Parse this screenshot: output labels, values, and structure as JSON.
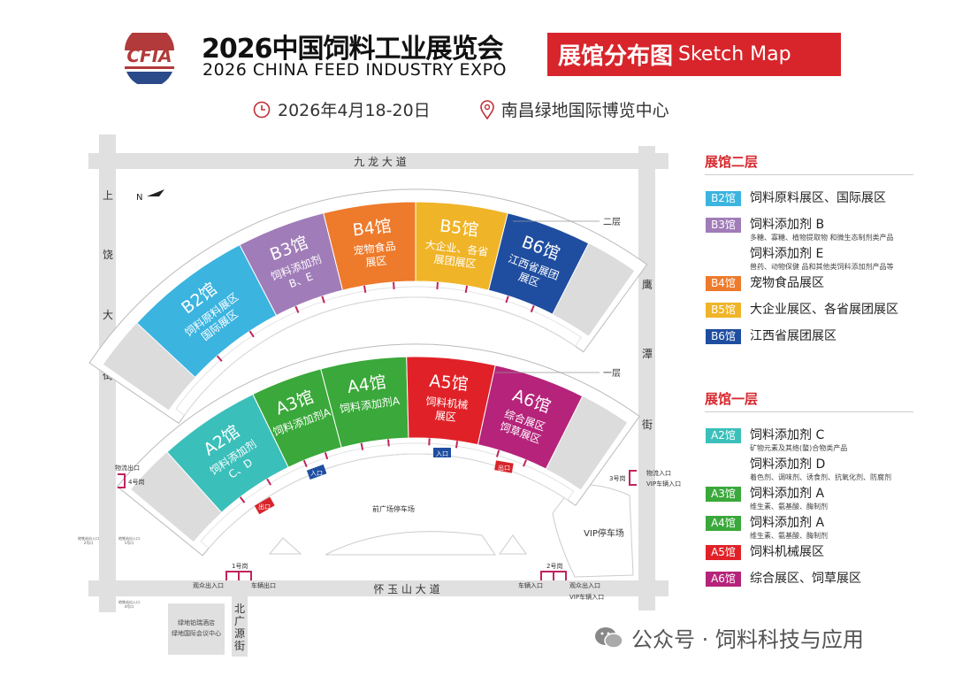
{
  "header": {
    "logo_text": "CFIA",
    "title_cn": "2026中国饲料工业展览会",
    "title_en": "2026 CHINA FEED INDUSTRY EXPO",
    "banner_cn": "展馆分布图",
    "banner_en": "Sketch Map",
    "date": "2026年4月18-20日",
    "venue": "南昌绿地国际博览中心"
  },
  "roads": {
    "north": "九 龙 大 道",
    "south": "怀 玉 山 大 道",
    "west": [
      "上",
      "饶",
      "大",
      "街"
    ],
    "east": [
      "鹰",
      "潭",
      "街"
    ],
    "bottom_street": [
      "北",
      "广",
      "源",
      "街"
    ]
  },
  "map_labels": {
    "north": "N",
    "floor2": "二层",
    "floor1": "一层",
    "plaza": "前广场停车场",
    "vip_parking": "VIP停车场",
    "hotel_1": "绿地铂瑞酒店",
    "hotel_2": "绿地国际会议中心",
    "entrance": "入口",
    "exit": "出口",
    "gate1": "1号岗",
    "gate1_left": "观众出入口",
    "gate1_right": "车辆出口",
    "gate2": "2号岗",
    "gate2_left": "车辆入口",
    "gate2_right": "观众出入口",
    "gate2_vip": "VIP车辆入口",
    "gate3": "3号岗",
    "gate3_a": "物流入口",
    "gate3_b": "VIP车辆入口",
    "gate4": "4号岗",
    "gate4_a": "物流出口",
    "metro_1": "地铁站出入口",
    "metro_1b": "2号口",
    "metro_2": "地铁站出入口",
    "metro_2b": "1号口",
    "metro_3": "地铁站出入口",
    "metro_3b": "4号口"
  },
  "halls_upper": [
    {
      "id": "B2",
      "lines": [
        "B2馆",
        "饲料原料展区",
        "国际展区"
      ],
      "color": "#3bb4e0"
    },
    {
      "id": "B3",
      "lines": [
        "B3馆",
        "饲料添加剂",
        "B、E"
      ],
      "color": "#a07cb8"
    },
    {
      "id": "B4",
      "lines": [
        "B4馆",
        "宠物食品",
        "展区"
      ],
      "color": "#ee7a2b"
    },
    {
      "id": "B5",
      "lines": [
        "B5馆",
        "大企业、各省",
        "展团展区"
      ],
      "color": "#f0b428"
    },
    {
      "id": "B6",
      "lines": [
        "B6馆",
        "江西省展团",
        "展区"
      ],
      "color": "#1f4ea0"
    }
  ],
  "halls_lower": [
    {
      "id": "A2",
      "lines": [
        "A2馆",
        "饲料添加剂",
        "C、D"
      ],
      "color": "#3bbfba"
    },
    {
      "id": "A3",
      "lines": [
        "A3馆",
        "饲料添加剂A"
      ],
      "color": "#3aa83a"
    },
    {
      "id": "A4",
      "lines": [
        "A4馆",
        "饲料添加剂A"
      ],
      "color": "#3aa83a"
    },
    {
      "id": "A5",
      "lines": [
        "A5馆",
        "饲料机械",
        "展区"
      ],
      "color": "#e02228"
    },
    {
      "id": "A6",
      "lines": [
        "A6馆",
        "综合展区",
        "饲草展区"
      ],
      "color": "#b5237a"
    }
  ],
  "legend": {
    "floor2_title": "展馆二层",
    "floor2": [
      {
        "badge": "B2馆",
        "color": "#3bb4e0",
        "items": [
          {
            "main": "饲料原料展区、国际展区"
          }
        ]
      },
      {
        "badge": "B3馆",
        "color": "#a07cb8",
        "items": [
          {
            "main": "饲料添加剂 B",
            "sub": "多糖、寡糖、植物提取物 和微生态制剂类产品"
          },
          {
            "main": "饲料添加剂 E",
            "sub": "兽药、动物保健 品和其他类饲料添加剂产品等"
          }
        ]
      },
      {
        "badge": "B4馆",
        "color": "#ee7a2b",
        "items": [
          {
            "main": "宠物食品展区"
          }
        ]
      },
      {
        "badge": "B5馆",
        "color": "#f0b428",
        "items": [
          {
            "main": "大企业展区、各省展团展区"
          }
        ]
      },
      {
        "badge": "B6馆",
        "color": "#1f4ea0",
        "items": [
          {
            "main": "江西省展团展区"
          }
        ]
      }
    ],
    "floor1_title": "展馆一层",
    "floor1": [
      {
        "badge": "A2馆",
        "color": "#3bbfba",
        "items": [
          {
            "main": "饲料添加剂 C",
            "sub": "矿物元素及其络(螯)合物类产品"
          },
          {
            "main": "饲料添加剂 D",
            "sub": "着色剂、调味剂、诱食剂、抗氧化剂、防腐剂"
          }
        ]
      },
      {
        "badge": "A3馆",
        "color": "#3aa83a",
        "items": [
          {
            "main": "饲料添加剂 A",
            "sub": "维生素、氨基酸、酶制剂"
          }
        ]
      },
      {
        "badge": "A4馆",
        "color": "#3aa83a",
        "items": [
          {
            "main": "饲料添加剂 A",
            "sub": "维生素、氨基酸、酶制剂"
          }
        ]
      },
      {
        "badge": "A5馆",
        "color": "#e02228",
        "items": [
          {
            "main": "饲料机械展区"
          }
        ]
      },
      {
        "badge": "A6馆",
        "color": "#b5237a",
        "items": [
          {
            "main": "综合展区、饲草展区"
          }
        ]
      }
    ]
  },
  "footer": {
    "text": "公众号 · 饲料科技与应用"
  }
}
